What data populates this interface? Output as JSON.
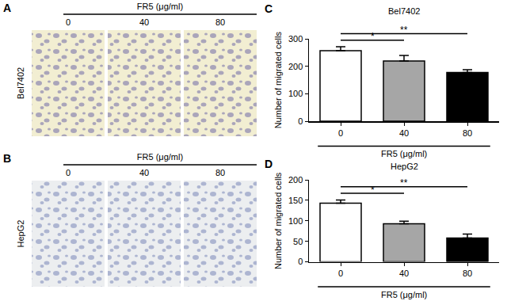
{
  "panels": [
    {
      "panel": "A",
      "header": "FR5 (μg/ml)",
      "doses": [
        "0",
        "40",
        "80"
      ],
      "cell_line": "Bel7402"
    },
    {
      "panel": "B",
      "header": "FR5 (μg/ml)",
      "doses": [
        "0",
        "40",
        "80"
      ],
      "cell_line": "HepG2"
    }
  ],
  "chart_data": [
    {
      "panel": "C",
      "type": "bar",
      "title": "Bel7402",
      "y_label": "Number of migrated cells",
      "x_label": "FR5 (μg/ml)",
      "categories": [
        "0",
        "40",
        "80"
      ],
      "values": [
        258,
        220,
        178
      ],
      "errors": [
        14,
        20,
        10
      ],
      "colors": [
        "#ffffff",
        "#a6a6a6",
        "#000000"
      ],
      "ylim": [
        0,
        300
      ],
      "yticks": [
        0,
        100,
        200,
        300
      ],
      "significance": [
        {
          "from": "0",
          "to": "40",
          "label": "*"
        },
        {
          "from": "0",
          "to": "80",
          "label": "**"
        }
      ]
    },
    {
      "panel": "D",
      "type": "bar",
      "title": "HepG2",
      "y_label": "Number of migrated cells",
      "x_label": "FR5 (μg/ml)",
      "categories": [
        "0",
        "40",
        "80"
      ],
      "values": [
        143,
        93,
        58
      ],
      "errors": [
        8,
        6,
        10
      ],
      "colors": [
        "#ffffff",
        "#a6a6a6",
        "#000000"
      ],
      "ylim": [
        0,
        200
      ],
      "yticks": [
        0,
        50,
        100,
        150,
        200
      ],
      "significance": [
        {
          "from": "0",
          "to": "40",
          "label": "*"
        },
        {
          "from": "0",
          "to": "80",
          "label": "**"
        }
      ]
    }
  ]
}
